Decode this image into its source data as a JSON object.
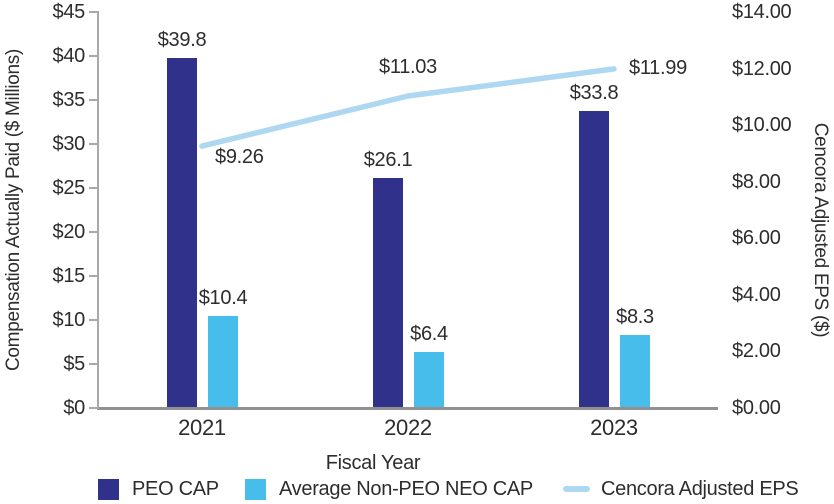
{
  "chart_data": {
    "type": "combo-bar-line",
    "categories": [
      "2021",
      "2022",
      "2023"
    ],
    "xlabel": "Fiscal Year",
    "ylabel_left": "Compensation Actually Paid ($ Millions)",
    "ylabel_right": "Cencora Adjusted EPS ($)",
    "left_axis": {
      "min": 0,
      "max": 45,
      "step": 5,
      "tick_labels": [
        "$0",
        "$5",
        "$10",
        "$15",
        "$20",
        "$25",
        "$30",
        "$35",
        "$40",
        "$45"
      ]
    },
    "right_axis": {
      "min": 0,
      "max": 14,
      "step": 2,
      "tick_labels": [
        "$0.00",
        "$2.00",
        "$4.00",
        "$6.00",
        "$8.00",
        "$10.00",
        "$12.00",
        "$14.00"
      ]
    },
    "grid": false,
    "legend_position": "bottom",
    "series": [
      {
        "name": "PEO CAP",
        "type": "bar",
        "axis": "left",
        "color": "#2f318b",
        "values": [
          39.8,
          26.1,
          33.8
        ],
        "labels": [
          "$39.8",
          "$26.1",
          "$33.8"
        ]
      },
      {
        "name": "Average Non-PEO NEO CAP",
        "type": "bar",
        "axis": "left",
        "color": "#47bdec",
        "values": [
          10.4,
          6.4,
          8.3
        ],
        "labels": [
          "$10.4",
          "$6.4",
          "$8.3"
        ]
      },
      {
        "name": "Cencora Adjusted EPS",
        "type": "line",
        "axis": "right",
        "color": "#aed7f2",
        "values": [
          9.26,
          11.03,
          11.99
        ],
        "labels": [
          "$9.26",
          "$11.03",
          "$11.99"
        ]
      }
    ]
  },
  "colors": {
    "background": "#ffffff",
    "text": "#2d2d2d",
    "axis_line": "#a8a8a8",
    "baseline": "#919191",
    "peo_bar": "#2f318b",
    "neo_bar": "#47bdec",
    "eps_line": "#aed7f2"
  }
}
